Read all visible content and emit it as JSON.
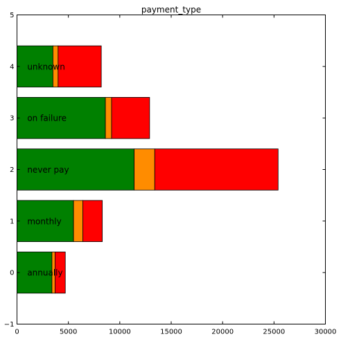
{
  "chart_data": {
    "type": "bar",
    "orientation": "horizontal",
    "stacked": true,
    "title": "payment_type",
    "xlabel": "",
    "ylabel": "",
    "xlim": [
      0,
      30000
    ],
    "ylim": [
      -1,
      5
    ],
    "x_ticks": [
      "0",
      "5000",
      "10000",
      "15000",
      "20000",
      "25000",
      "30000"
    ],
    "y_ticks": [
      "−1",
      "0",
      "1",
      "2",
      "3",
      "4",
      "5"
    ],
    "grid": false,
    "categories": [
      "annually",
      "monthly",
      "never pay",
      "on failure",
      "unknown"
    ],
    "positions": [
      0,
      1,
      2,
      3,
      4
    ],
    "series": [
      {
        "color": "#008000",
        "values": [
          3400,
          5500,
          11400,
          8600,
          3500
        ]
      },
      {
        "color": "#ff8c00",
        "values": [
          300,
          900,
          2000,
          600,
          500
        ]
      },
      {
        "color": "#ff0000",
        "values": [
          1000,
          1900,
          12000,
          3700,
          4200
        ]
      }
    ]
  }
}
